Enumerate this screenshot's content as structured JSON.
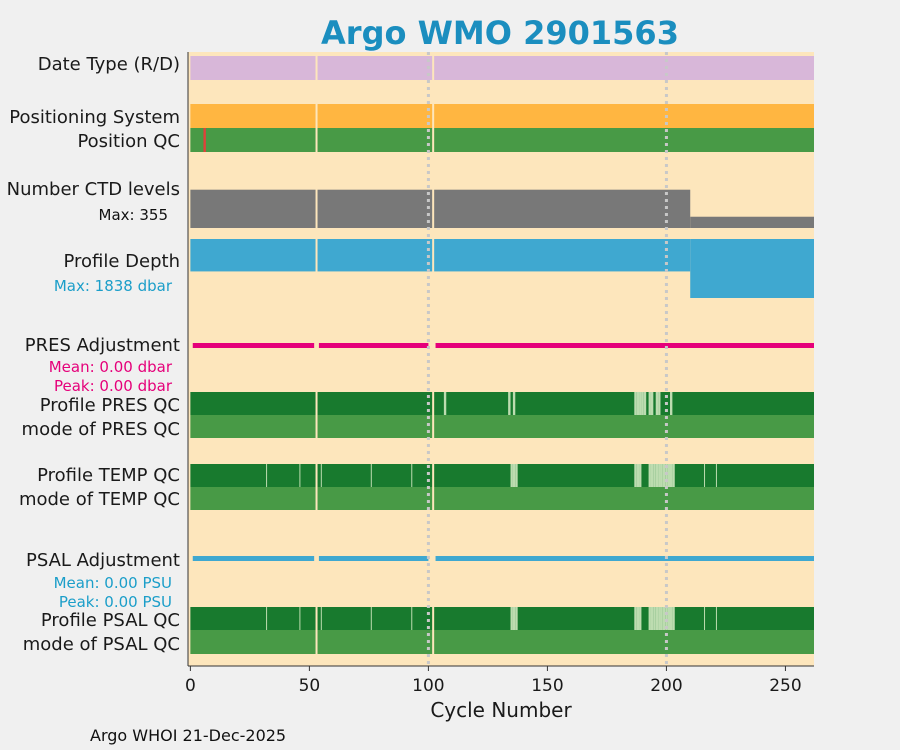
{
  "chart_data": {
    "type": "bar",
    "title": "Argo WMO 2901563",
    "xlabel": "Cycle Number",
    "xlim": [
      -1,
      262
    ],
    "xticks": [
      0,
      50,
      100,
      150,
      200,
      250
    ],
    "vlines_dotted": [
      100,
      200
    ],
    "vlines_solid": [
      53,
      102
    ],
    "footer": "Argo WHOI 21-Dec-2025",
    "colors": {
      "background": "#fde6bc",
      "date_type": "#d8b7d9",
      "positioning": "#ffb641",
      "qc_good": "#489a46",
      "qc_dark": "#187a2e",
      "qc_light": "#bddcb0",
      "qc_bad": "#e0413a",
      "ctd": "#787878",
      "depth": "#3fa8d0",
      "pres": "#e5007a",
      "psal": "#3fa8d0",
      "title": "#1b8ebf"
    },
    "rows": {
      "date_type": {
        "label": "Date Type (R/D)"
      },
      "positioning": {
        "label": "Positioning System"
      },
      "position_qc": {
        "label": "Position QC",
        "bad_cycles": [
          6
        ]
      },
      "ctd_levels": {
        "label": "Number CTD levels",
        "max_label": "Max: 355",
        "max": 355,
        "segments": [
          {
            "from": 0,
            "to": 210,
            "levels": 340
          },
          {
            "from": 210,
            "to": 262,
            "levels": 100
          }
        ]
      },
      "profile_depth": {
        "label": "Profile Depth",
        "max_label": "Max: 1838 dbar",
        "max": 1838,
        "segments": [
          {
            "from": 0,
            "to": 210,
            "depth": 1010
          },
          {
            "from": 210,
            "to": 262,
            "depth": 1838
          }
        ]
      },
      "pres_adjustment": {
        "label": "PRES Adjustment",
        "mean_label": "Mean: 0.00 dbar",
        "peak_label": "Peak: 0.00 dbar",
        "segments": [
          [
            1,
            52
          ],
          [
            54,
            100
          ],
          [
            103,
            262
          ]
        ]
      },
      "profile_pres_qc": {
        "label": "Profile PRES QC",
        "light_cycles": [
          107,
          134,
          136,
          187,
          188,
          189,
          190,
          191,
          193,
          194,
          196,
          197,
          202
        ]
      },
      "mode_pres_qc": {
        "label": "mode of PRES QC"
      },
      "profile_temp_qc": {
        "label": "Profile TEMP QC",
        "light_cycles": [
          135,
          136,
          137,
          187,
          188,
          189,
          193,
          194,
          195,
          196,
          197,
          198,
          199,
          200,
          201,
          202,
          203
        ],
        "thin_light_cycles": [
          32,
          46,
          55,
          76,
          93,
          216,
          221
        ]
      },
      "mode_temp_qc": {
        "label": "mode of TEMP QC"
      },
      "psal_adjustment": {
        "label": "PSAL Adjustment",
        "mean_label": "Mean: 0.00 PSU",
        "peak_label": "Peak: 0.00 PSU",
        "segments": [
          [
            1,
            52
          ],
          [
            54,
            100
          ],
          [
            103,
            262
          ]
        ]
      },
      "profile_psal_qc": {
        "label": "Profile PSAL QC",
        "light_cycles": [
          135,
          136,
          137,
          187,
          188,
          189,
          193,
          194,
          195,
          196,
          197,
          198,
          199,
          200,
          201,
          202,
          203
        ],
        "thin_light_cycles": [
          32,
          46,
          55,
          76,
          93,
          216,
          221
        ]
      },
      "mode_psal_qc": {
        "label": "mode of PSAL QC"
      }
    }
  }
}
